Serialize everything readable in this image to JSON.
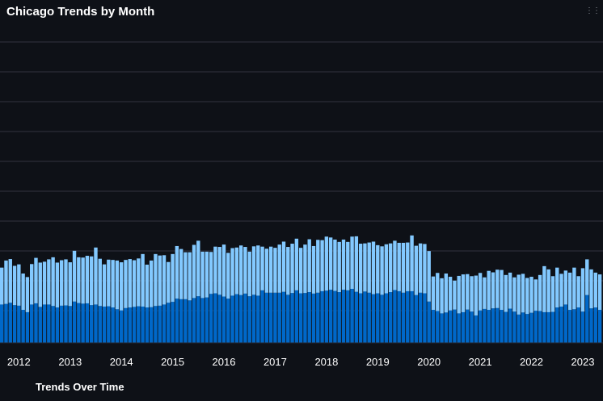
{
  "header": {
    "title": "Chicago Trends by Month",
    "menu_icon": "more-options-icon"
  },
  "colors": {
    "background": "#0e1117",
    "bar_bottom": "#0068c9",
    "bar_top": "#83c9ff",
    "gridline": "#31333f",
    "text": "#ffffff"
  },
  "chart_data": {
    "type": "bar",
    "stacked": true,
    "title": "Chicago Trends by Month",
    "xlabel": "Trends Over Time",
    "ylabel": "",
    "grid": true,
    "legend": "none",
    "x_tick_labels": [
      "2012",
      "2013",
      "2014",
      "2015",
      "2016",
      "2017",
      "2018",
      "2019",
      "2020",
      "2021",
      "2022",
      "2023"
    ],
    "start_month": "2011-09",
    "series": [
      {
        "values": [
          130,
          132,
          136,
          128,
          126,
          112,
          104,
          130,
          134,
          122,
          130,
          130,
          125,
          120,
          126,
          127,
          125,
          140,
          135,
          133,
          134,
          128,
          130,
          125,
          123,
          124,
          120,
          114,
          110,
          118,
          120,
          122,
          124,
          123,
          120,
          121,
          125,
          126,
          130,
          136,
          139,
          150,
          148,
          148,
          144,
          152,
          158,
          152,
          154,
          166,
          168,
          163,
          157,
          150,
          160,
          165,
          162,
          167,
          158,
          163,
          160,
          178,
          170,
          170,
          170,
          170,
          173,
          163,
          169,
          178,
          168,
          169,
          172,
          167,
          170,
          175,
          177,
          180,
          176,
          172,
          180,
          178,
          183,
          173,
          168,
          174,
          170,
          165,
          168,
          163,
          168,
          172,
          179,
          175,
          170,
          175,
          175,
          162,
          170,
          168,
          140,
          112,
          108,
          100,
          103,
          110,
          113,
          100,
          104,
          113,
          106,
          93,
          110,
          115,
          112,
          117,
          118,
          112,
          105,
          116,
          106,
          96,
          103,
          98,
          102,
          109,
          108,
          104,
          104,
          105,
          120,
          123,
          130,
          112,
          114,
          120,
          106,
          162,
          117,
          120,
          112
        ]
      },
      {
        "values": [
          125,
          147,
          148,
          133,
          140,
          123,
          119,
          137,
          154,
          150,
          145,
          153,
          165,
          152,
          154,
          156,
          148,
          172,
          155,
          156,
          161,
          165,
          193,
          160,
          143,
          158,
          161,
          165,
          163,
          163,
          164,
          158,
          162,
          178,
          145,
          158,
          176,
          170,
          167,
          138,
          162,
          178,
          170,
          159,
          163,
          180,
          188,
          157,
          155,
          142,
          158,
          162,
          176,
          155,
          161,
          158,
          168,
          158,
          151,
          164,
          170,
          148,
          149,
          156,
          152,
          163,
          170,
          162,
          167,
          175,
          154,
          164,
          179,
          161,
          179,
          173,
          183,
          177,
          174,
          170,
          170,
          164,
          177,
          188,
          168,
          163,
          170,
          178,
          163,
          164,
          166,
          165,
          167,
          164,
          169,
          165,
          189,
          167,
          167,
          167,
          171,
          113,
          129,
          119,
          132,
          114,
          98,
          127,
          128,
          120,
          120,
          135,
          127,
          107,
          132,
          122,
          130,
          135,
          125,
          122,
          116,
          135,
          131,
          122,
          122,
          106,
          122,
          156,
          145,
          121,
          135,
          111,
          115,
          126,
          141,
          106,
          147,
          121,
          132,
          118,
          120
        ]
      }
    ]
  },
  "xaxis": {
    "title": "Trends Over Time"
  }
}
